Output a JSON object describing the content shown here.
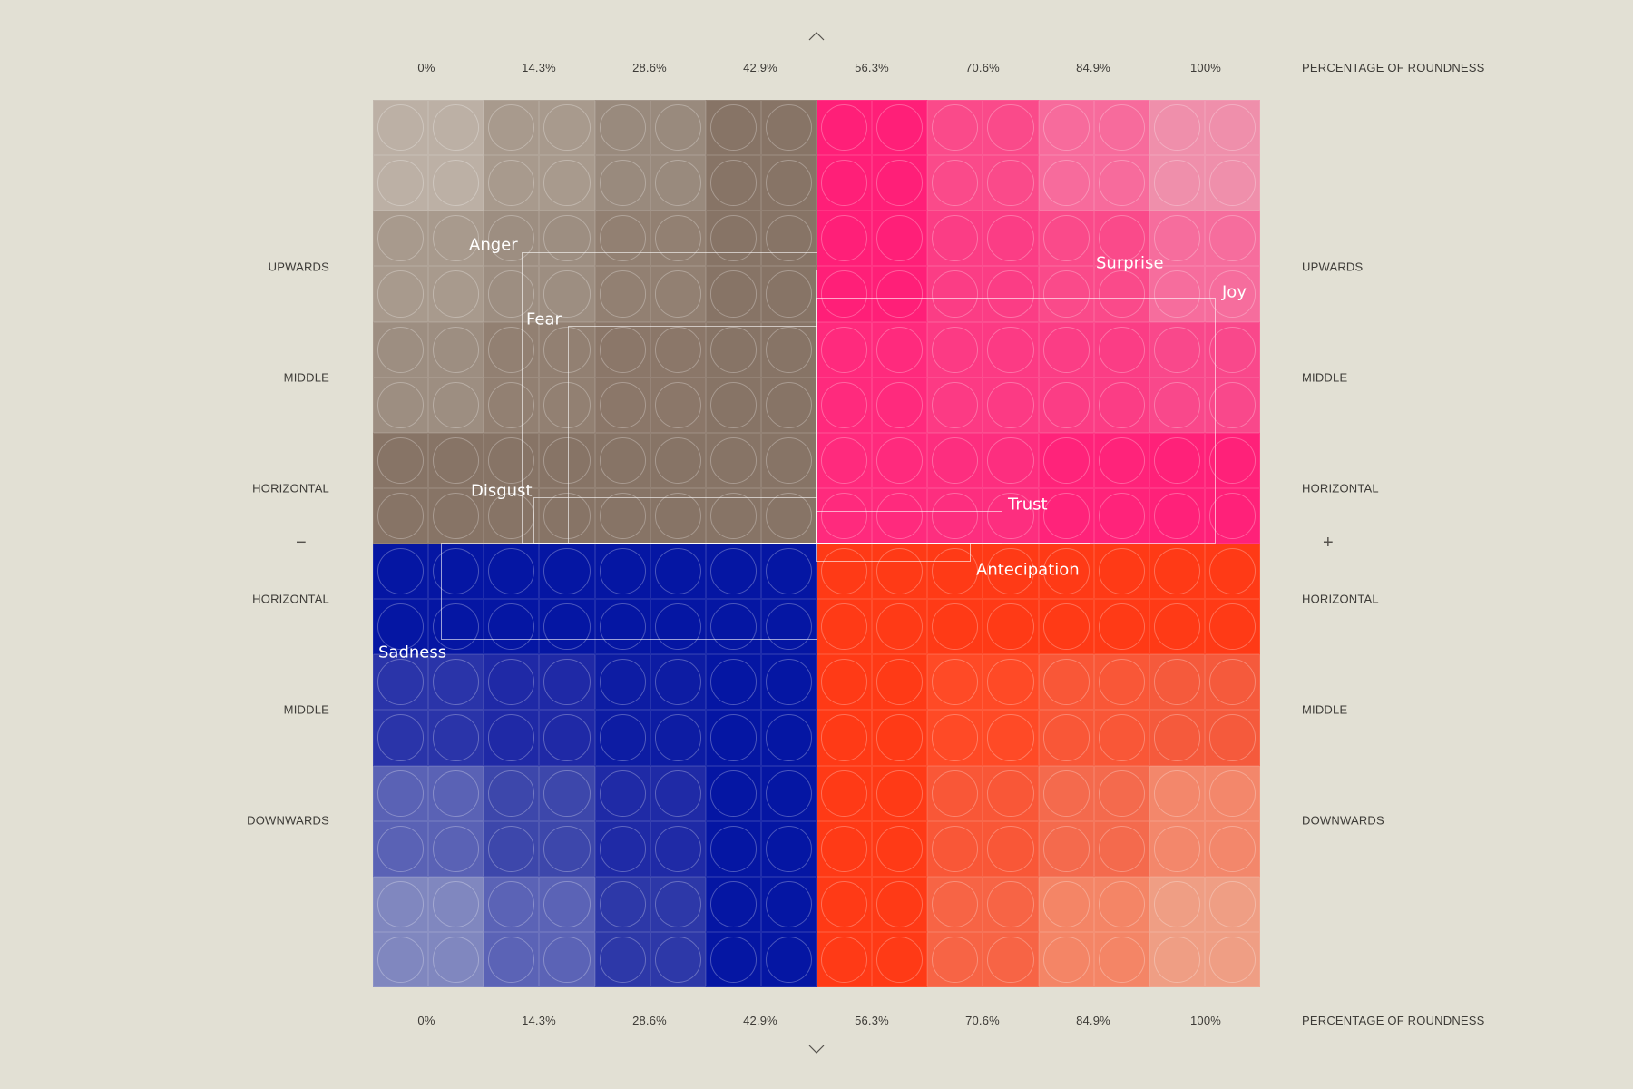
{
  "chart_data": {
    "type": "heatmap",
    "title": "",
    "xlabel": "PERCENTAGE OF ROUNDNESS",
    "ylabel": "",
    "x_ticks": [
      "0%",
      "14.3%",
      "28.6%",
      "42.9%",
      "56.3%",
      "70.6%",
      "84.9%",
      "100%"
    ],
    "y_ticks_top_half": [
      "UPWARDS",
      "MIDDLE",
      "HORIZONTAL"
    ],
    "y_ticks_bottom_half": [
      "HORIZONTAL",
      "MIDDLE",
      "DOWNWARDS"
    ],
    "axis_signs": {
      "left": "−",
      "right": "+",
      "up": "^",
      "down": "v"
    },
    "quadrants": [
      {
        "name": "upper-left",
        "hue": "brown",
        "colors": [
          [
            "#bcb0a5",
            "#a89a8d",
            "#998a7d",
            "#877466"
          ],
          [
            "#a89a8d",
            "#9d8e81",
            "#928072",
            "#877466"
          ],
          [
            "#9d8e81",
            "#928072",
            "#8b7769",
            "#877466"
          ],
          [
            "#877466",
            "#877466",
            "#877466",
            "#877466"
          ]
        ]
      },
      {
        "name": "upper-right",
        "hue": "pink",
        "colors": [
          [
            "#ff1f78",
            "#fa4a8a",
            "#f76b9c",
            "#ef8fab"
          ],
          [
            "#ff1f78",
            "#fb3d85",
            "#fa4a8a",
            "#f66d9d"
          ],
          [
            "#ff2a7d",
            "#fc3a84",
            "#fb3d85",
            "#f9488b"
          ],
          [
            "#ff2a7d",
            "#fd2e7f",
            "#ff237a",
            "#ff2179"
          ]
        ]
      },
      {
        "name": "lower-left",
        "hue": "blue",
        "colors": [
          [
            "#0516a3",
            "#0516a3",
            "#0516a3",
            "#0516a3"
          ],
          [
            "#2a34a9",
            "#1f29a6",
            "#0d1ca3",
            "#0516a3"
          ],
          [
            "#5a62b5",
            "#3d47ab",
            "#1f2aa6",
            "#0516a3"
          ],
          [
            "#8087bf",
            "#5b63b6",
            "#2d38a8",
            "#0516a3"
          ]
        ]
      },
      {
        "name": "lower-right",
        "hue": "orange",
        "colors": [
          [
            "#ff3a16",
            "#ff3a16",
            "#ff3a16",
            "#ff3a16"
          ],
          [
            "#ff3a16",
            "#ff4a26",
            "#f95737",
            "#f55a3c"
          ],
          [
            "#ff3a16",
            "#f95737",
            "#f46a4d",
            "#f3876b"
          ],
          [
            "#ff3a16",
            "#f76445",
            "#f48566",
            "#ef9e84"
          ]
        ]
      }
    ],
    "emotions": [
      {
        "label": "Anger",
        "roundness": "14.3%",
        "direction": "UPWARDS",
        "quadrant": "upper-left"
      },
      {
        "label": "Fear",
        "roundness": "28.6%",
        "direction": "MIDDLE",
        "quadrant": "upper-left"
      },
      {
        "label": "Disgust",
        "roundness": "14.3%",
        "direction": "HORIZONTAL",
        "quadrant": "upper-left"
      },
      {
        "label": "Surprise",
        "roundness": "84.9%",
        "direction": "UPWARDS",
        "quadrant": "upper-right"
      },
      {
        "label": "Joy",
        "roundness": "100%",
        "direction": "UPWARDS",
        "quadrant": "upper-right"
      },
      {
        "label": "Trust",
        "roundness": "70.6%",
        "direction": "HORIZONTAL",
        "quadrant": "upper-right"
      },
      {
        "label": "Antecipation",
        "roundness": "70.6%",
        "direction": "HORIZONTAL",
        "quadrant": "lower-right"
      },
      {
        "label": "Sadness",
        "roundness": "0%",
        "direction": "HORIZONTAL",
        "quadrant": "lower-left"
      }
    ]
  },
  "axis": {
    "x_ticks": [
      "0%",
      "14.3%",
      "28.6%",
      "42.9%",
      "56.3%",
      "70.6%",
      "84.9%",
      "100%"
    ],
    "x_label": "PERCENTAGE OF ROUNDNESS",
    "rows": [
      "UPWARDS",
      "MIDDLE",
      "HORIZONTAL",
      "HORIZONTAL",
      "MIDDLE",
      "DOWNWARDS"
    ],
    "minus": "−",
    "plus": "+"
  },
  "labels": {
    "anger": "Anger",
    "fear": "Fear",
    "disgust": "Disgust",
    "surprise": "Surprise",
    "joy": "Joy",
    "trust": "Trust",
    "antecipation": "Antecipation",
    "sadness": "Sadness"
  }
}
